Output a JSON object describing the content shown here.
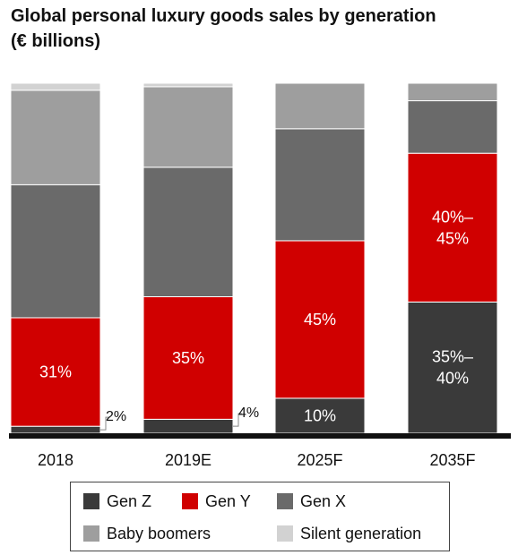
{
  "title_lines": [
    "Global personal luxury goods sales by generation",
    "(€ billions)"
  ],
  "colors": {
    "gen_z": "#3a3a3a",
    "gen_y": "#d00000",
    "gen_x": "#6a6a6a",
    "baby_boomers": "#9e9e9e",
    "silent_generation": "#d2d2d2",
    "baseline": "#111111"
  },
  "legend": [
    {
      "key": "gen_z",
      "label": "Gen Z"
    },
    {
      "key": "gen_y",
      "label": "Gen Y"
    },
    {
      "key": "gen_x",
      "label": "Gen X"
    },
    {
      "key": "baby_boomers",
      "label": "Baby boomers"
    },
    {
      "key": "silent_generation",
      "label": "Silent generation"
    }
  ],
  "chart_data": {
    "type": "bar",
    "stacked": true,
    "normalized": true,
    "categories": [
      "2018",
      "2019E",
      "2025F",
      "2035F"
    ],
    "series": [
      {
        "name": "Gen Z",
        "key": "gen_z",
        "values": [
          2,
          4,
          10,
          37.5
        ],
        "labels": [
          "2%",
          "4%",
          "10%",
          "35%–\n40%"
        ]
      },
      {
        "name": "Gen Y",
        "key": "gen_y",
        "values": [
          31,
          35,
          45,
          42.5
        ],
        "labels": [
          "31%",
          "35%",
          "45%",
          "40%–\n45%"
        ]
      },
      {
        "name": "Gen X",
        "key": "gen_x",
        "values": [
          38,
          37,
          32,
          15
        ],
        "labels": [
          "",
          "",
          "",
          ""
        ]
      },
      {
        "name": "Baby boomers",
        "key": "baby_boomers",
        "values": [
          27,
          23,
          13,
          5
        ],
        "labels": [
          "",
          "",
          "",
          ""
        ]
      },
      {
        "name": "Silent generation",
        "key": "silent_generation",
        "values": [
          2,
          1,
          0,
          0
        ],
        "labels": [
          "",
          "",
          "",
          ""
        ]
      }
    ],
    "label_outside": [
      "2%",
      "4%",
      "",
      ""
    ],
    "ylim": [
      0,
      100
    ],
    "grid": false,
    "legend_position": "bottom"
  }
}
